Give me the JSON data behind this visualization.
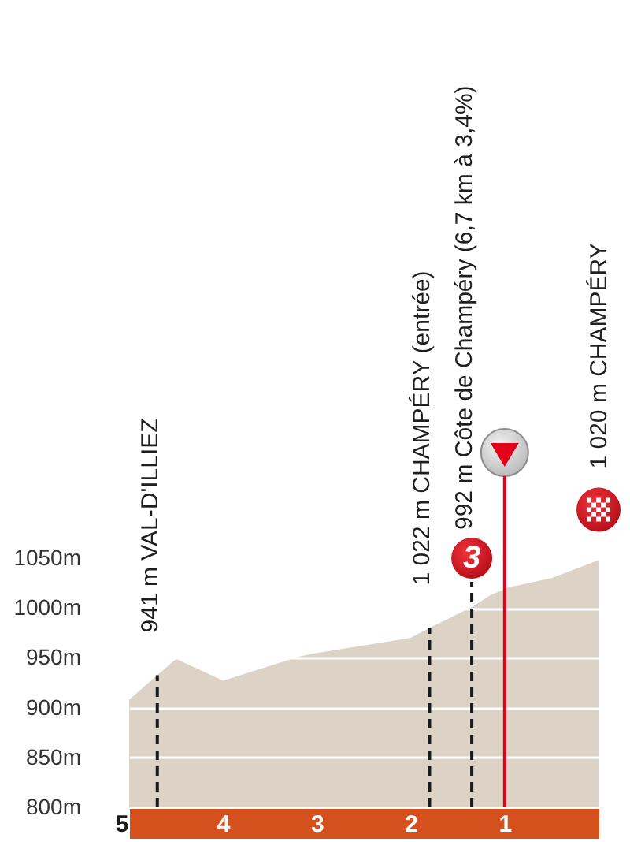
{
  "chart_data": {
    "type": "area",
    "x": [
      5,
      4.5,
      4,
      3.2,
      3.05,
      2,
      1.8,
      1.35,
      1.15,
      0.95,
      0.5,
      0
    ],
    "values": [
      908,
      949,
      927,
      951,
      954,
      970,
      980,
      1001,
      1013,
      1021,
      1030,
      1048
    ],
    "color": "#dcd2c6",
    "xlim": [
      5,
      0
    ],
    "xticks": [
      5,
      4,
      3,
      2,
      1
    ],
    "ylim": [
      800,
      1050
    ],
    "yticks": [
      {
        "value": 800,
        "label": "800m"
      },
      {
        "value": 850,
        "label": "850m"
      },
      {
        "value": 900,
        "label": "900m"
      },
      {
        "value": 950,
        "label": "950m"
      },
      {
        "value": 1000,
        "label": "1000m"
      },
      {
        "value": 1050,
        "label": "1050m"
      }
    ],
    "grid": "y",
    "ref_lines": [
      {
        "axis": "x",
        "value": 4.7,
        "label": "941 m VAL-D'ILLIEZ",
        "color": "#1a1a1a",
        "line_style": "dashed"
      },
      {
        "axis": "x",
        "value": 1.8,
        "label": "1 022 m CHAMPÉRY (entrée)",
        "color": "#1a1a1a",
        "line_style": "dashed"
      },
      {
        "axis": "x",
        "value": 1.35,
        "label": "992 m Côte de Champéry (6,7 km à 3,4%)",
        "color": "#1a1a1a",
        "line_style": "dashed"
      },
      {
        "axis": "x",
        "value": 1,
        "color": "#e2001a",
        "line_style": "solid"
      }
    ],
    "annotations": [
      {
        "text": "3",
        "x": 1.35,
        "y": 1050
      },
      "1 020 m CHAMPÉRY"
    ]
  }
}
